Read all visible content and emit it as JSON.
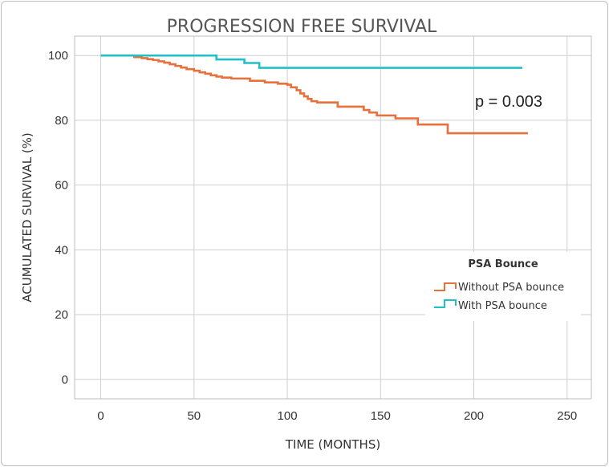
{
  "chart_data": {
    "type": "line",
    "title": "PROGRESSION FREE SURVIVAL",
    "xlabel": "TIME (MONTHS)",
    "ylabel": "ACUMULATED SURVIVAL (%)",
    "xlim": [
      -14,
      263
    ],
    "ylim": [
      -6,
      106
    ],
    "xticks": [
      "0",
      "50",
      "100",
      "150",
      "200",
      "250"
    ],
    "yticks": [
      "0",
      "20",
      "40",
      "60",
      "80",
      "100"
    ],
    "grid": true,
    "annotation": "p = 0.003",
    "legend": {
      "title": "PSA Bounce",
      "placement": "right",
      "entries": [
        "Without PSA bounce",
        "With PSA bounce"
      ]
    },
    "series": [
      {
        "name": "Without PSA bounce",
        "color": "#E8703A",
        "x": [
          0,
          14,
          18,
          22,
          25,
          28,
          31,
          34,
          37,
          40,
          43,
          46,
          50,
          53,
          56,
          59,
          62,
          65,
          70,
          80,
          88,
          95,
          100,
          102,
          105,
          107,
          109,
          111,
          113,
          116,
          120,
          127,
          141,
          144,
          148,
          158,
          170,
          186,
          229
        ],
        "y": [
          100,
          100,
          99.5,
          99.2,
          98.9,
          98.6,
          98.2,
          97.8,
          97.3,
          96.8,
          96.3,
          95.8,
          95.3,
          94.8,
          94.4,
          93.9,
          93.5,
          93.2,
          92.9,
          92.2,
          91.7,
          91.3,
          91.0,
          90.2,
          89.3,
          88.3,
          87.4,
          86.6,
          85.9,
          85.5,
          85.5,
          84.2,
          83.2,
          82.4,
          81.5,
          80.6,
          78.7,
          76.0,
          76.0
        ]
      },
      {
        "name": "With PSA bounce",
        "color": "#20C0C8",
        "x": [
          0,
          62,
          77,
          85,
          226
        ],
        "y": [
          100,
          98.8,
          97.7,
          96.2,
          96.2
        ]
      }
    ]
  }
}
